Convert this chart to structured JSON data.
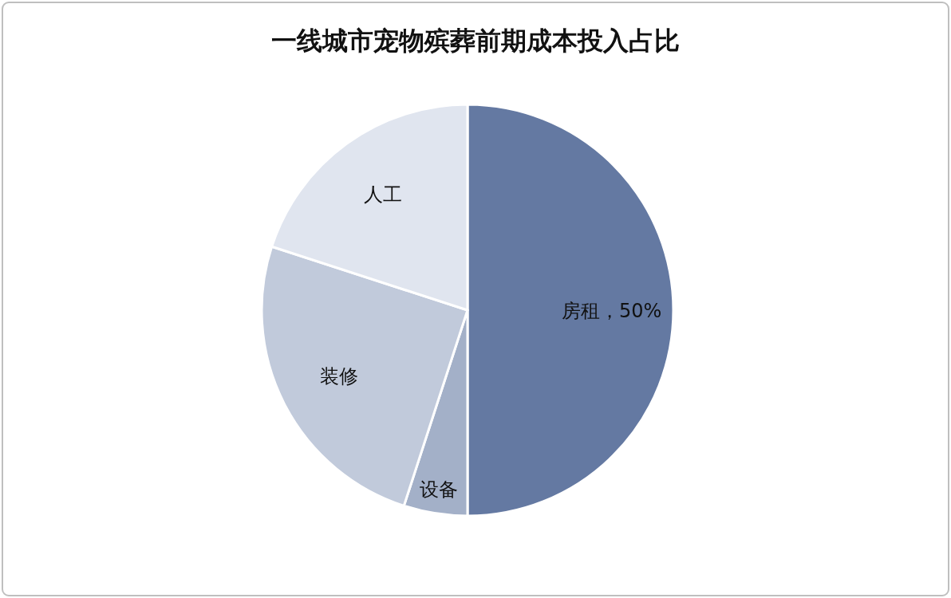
{
  "chart_data": {
    "type": "pie",
    "title": "一线城市宠物殡葬前期成本投入占比",
    "categories": [
      "房租",
      "设备",
      "装修",
      "人工"
    ],
    "values": [
      50,
      5,
      25,
      20
    ],
    "colors": [
      "#6479a2",
      "#a3b0c8",
      "#c1cadb",
      "#e0e5ef"
    ],
    "value_labels": [
      "50%",
      null,
      null,
      null
    ],
    "legend": false
  }
}
